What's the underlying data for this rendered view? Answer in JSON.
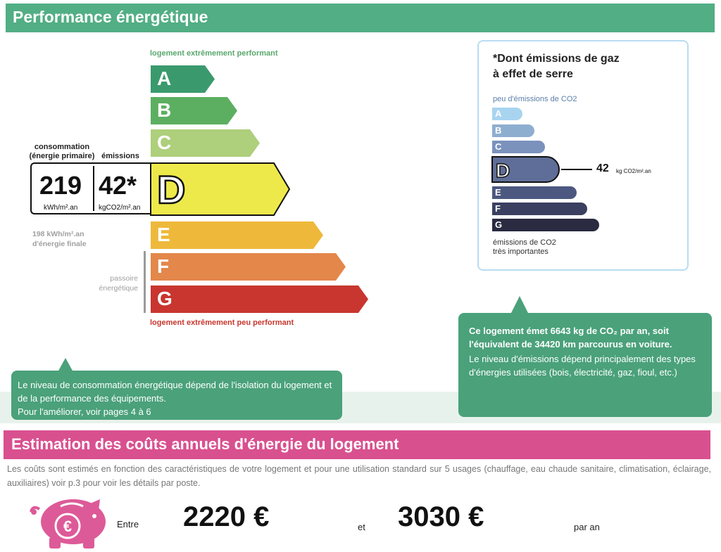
{
  "header": {
    "title": "Performance énergétique"
  },
  "dpe": {
    "top_note": "logement extrêmement performant",
    "bottom_note": "logement extrêmement peu performant",
    "classes": [
      {
        "letter": "A",
        "color": "#3a9a6e"
      },
      {
        "letter": "B",
        "color": "#5caf61"
      },
      {
        "letter": "C",
        "color": "#aecf7c"
      },
      {
        "letter": "D",
        "color": "#eee94a"
      },
      {
        "letter": "E",
        "color": "#eeb93b"
      },
      {
        "letter": "F",
        "color": "#e3874b"
      },
      {
        "letter": "G",
        "color": "#c8362f"
      }
    ],
    "current_class": "D",
    "consumption_label_line1": "consommation",
    "consumption_label_line2": "(énergie primaire)",
    "emissions_label": "émissions",
    "consumption_value": "219",
    "consumption_unit": "kWh/m².an",
    "emissions_value": "42*",
    "emissions_unit": "kgCO2/m².an",
    "final_energy_line1": "198 kWh/m².an",
    "final_energy_line2": "d'énergie finale",
    "passoire_line1": "passoire",
    "passoire_line2": "énergétique"
  },
  "ges": {
    "title_line1": "*Dont émissions de gaz",
    "title_line2": "à effet de serre",
    "top_note": "peu d'émissions de CO2",
    "bottom_note_line1": "émissions de CO2",
    "bottom_note_line2": "très importantes",
    "classes": [
      {
        "letter": "A",
        "color": "#a8d4f0"
      },
      {
        "letter": "B",
        "color": "#8eaed0"
      },
      {
        "letter": "C",
        "color": "#7b92bd"
      },
      {
        "letter": "D",
        "color": "#5f6e98"
      },
      {
        "letter": "E",
        "color": "#4c5880"
      },
      {
        "letter": "F",
        "color": "#3b3f60"
      },
      {
        "letter": "G",
        "color": "#2a2a40"
      }
    ],
    "current_class": "D",
    "value": "42",
    "unit": "kg CO2/m².an"
  },
  "bubble_right": {
    "bold_text": "Ce logement émet 6643 kg de CO₂ par an, soit l'équivalent de 34420  km parcourus en voiture.",
    "text": "Le niveau d'émissions dépend principalement des types d'énergies utilisées (bois, électricité, gaz, fioul, etc.)"
  },
  "bubble_left": {
    "text": "Le niveau de consommation énergétique dépend de l'isolation du logement et de la performance des équipements.",
    "text2": "Pour l'améliorer, voir pages 4 à 6"
  },
  "costs": {
    "title": "Estimation des coûts annuels d'énergie du logement",
    "description": "Les coûts sont estimés en fonction des caractéristiques de votre logement et pour une utilisation standard sur 5 usages (chauffage, eau chaude sanitaire, climatisation, éclairage, auxiliaires) voir p.3 pour voir les détails par poste.",
    "between_label": "Entre",
    "low": "2220 €",
    "and_label": "et",
    "high": "3030 €",
    "per_year": "par an",
    "icon": "piggy-bank-euro-icon"
  }
}
